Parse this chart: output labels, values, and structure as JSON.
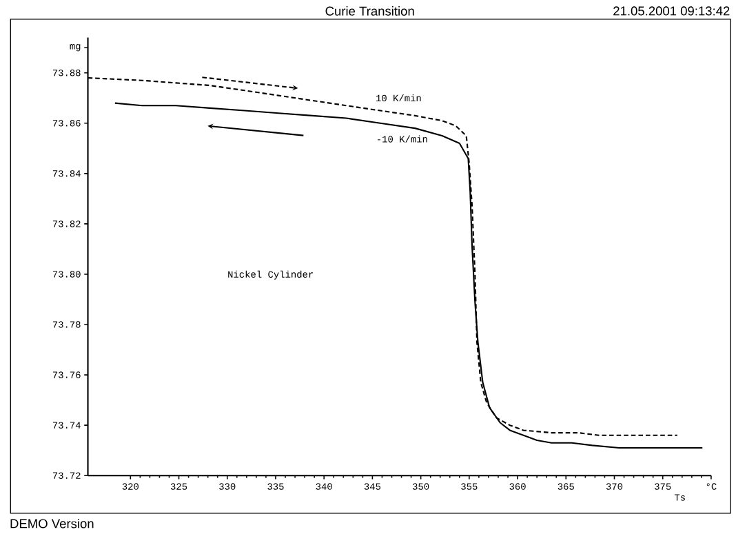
{
  "chart_data": {
    "type": "line",
    "title": "Curie Transition",
    "xlabel": "Ts",
    "marker": "none",
    "xlim": [
      315.6,
      380
    ],
    "ylim": [
      73.72,
      73.894
    ],
    "xticks": [
      320,
      325,
      330,
      335,
      340,
      345,
      350,
      355,
      360,
      365,
      370,
      375,
      {
        "value": 380,
        "label": "°C"
      }
    ],
    "yticks": [
      73.72,
      73.74,
      73.76,
      73.78,
      {
        "value": 73.8,
        "label": "73.80"
      },
      73.82,
      73.84,
      73.86,
      73.88,
      {
        "value": 73.89,
        "label": "mg"
      }
    ],
    "series": [
      {
        "name": "10 K/min",
        "color": "#000000",
        "line_style": "dashed",
        "x": [
          315.6,
          321.2,
          324.7,
          328.2,
          331.8,
          335.3,
          338.8,
          342.3,
          345.8,
          349.4,
          352.2,
          353.6,
          354.7,
          355.0,
          355.3,
          355.6,
          355.8,
          356.2,
          356.8,
          357.8,
          359.2,
          360.6,
          363.5,
          366.3,
          368.4,
          370.5,
          374.0,
          375.4,
          376.5
        ],
        "values": [
          73.878,
          73.877,
          73.876,
          73.875,
          73.873,
          73.871,
          73.869,
          73.867,
          73.865,
          73.863,
          73.861,
          73.859,
          73.855,
          73.844,
          73.827,
          73.8,
          73.773,
          73.757,
          73.749,
          73.743,
          73.74,
          73.738,
          73.737,
          73.737,
          73.736,
          73.736,
          73.736,
          73.736,
          73.736
        ]
      },
      {
        "name": "-10 K/min",
        "color": "#000000",
        "line_style": "solid",
        "x": [
          318.4,
          321.2,
          324.7,
          328.2,
          331.8,
          335.3,
          338.8,
          342.3,
          345.8,
          349.4,
          352.2,
          354.0,
          354.9,
          355.1,
          355.3,
          355.6,
          355.9,
          356.4,
          357.1,
          358.2,
          359.2,
          360.6,
          362.0,
          363.5,
          365.6,
          367.7,
          370.5,
          379.1
        ],
        "values": [
          73.868,
          73.867,
          73.867,
          73.866,
          73.865,
          73.864,
          73.863,
          73.862,
          73.86,
          73.858,
          73.855,
          73.852,
          73.846,
          73.833,
          73.811,
          73.789,
          73.773,
          73.757,
          73.747,
          73.741,
          73.738,
          73.736,
          73.734,
          73.733,
          73.733,
          73.732,
          73.731,
          73.731
        ]
      }
    ],
    "annotations": [
      "21.05.2001 09:13:42",
      "Nickel Cylinder",
      "DEMO Version"
    ]
  }
}
